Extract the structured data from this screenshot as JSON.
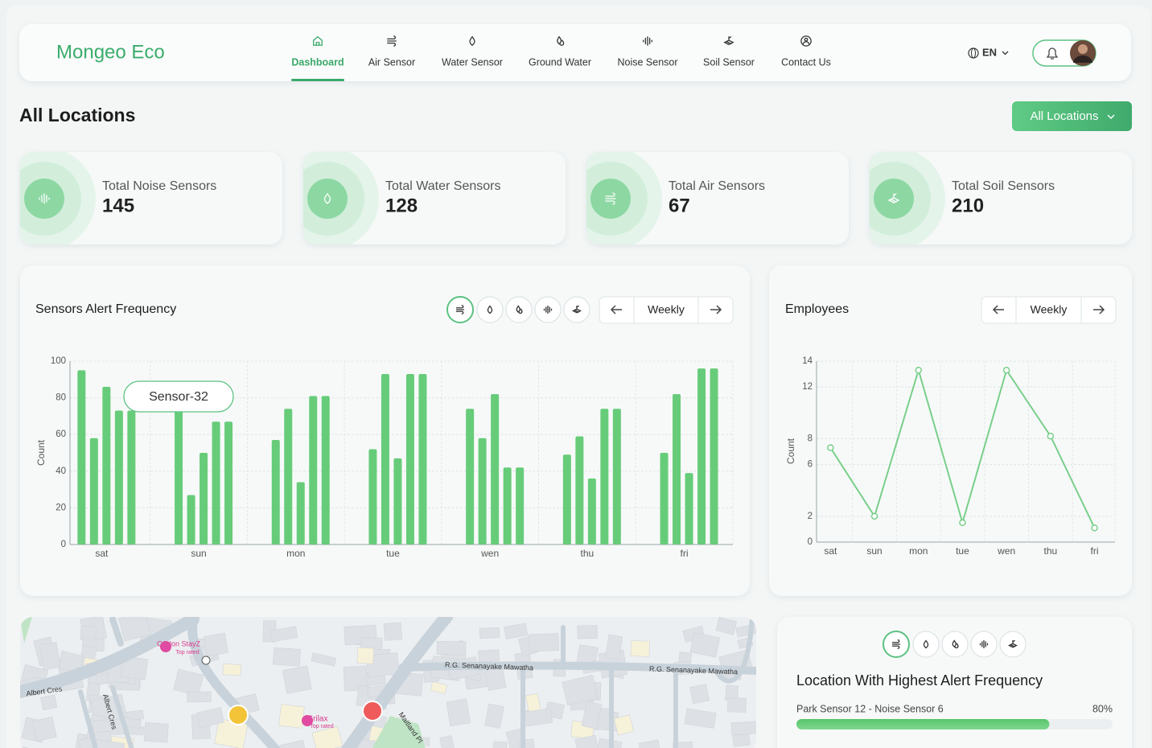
{
  "header": {
    "brand": "Mongeo Eco",
    "nav": [
      "Dashboard",
      "Air Sensor",
      "Water Sensor",
      "Ground Water",
      "Noise Sensor",
      "Soil Sensor",
      "Contact Us"
    ],
    "language": "EN"
  },
  "page_title": "All Locations",
  "location_filter": "All Locations",
  "stats": [
    {
      "label": "Total Noise Sensors",
      "value": 145
    },
    {
      "label": "Total Water Sensors",
      "value": 128
    },
    {
      "label": "Total Air Sensors",
      "value": 67
    },
    {
      "label": "Total Soil Sensors",
      "value": 210
    }
  ],
  "alert_chart": {
    "type": "bar",
    "title": "Sensors Alert Frequency",
    "period": "Weekly",
    "y_label": "Count",
    "categories": [
      "sat",
      "sun",
      "mon",
      "tue",
      "wen",
      "thu",
      "fri"
    ],
    "series": [
      {
        "values": [
          95,
          73,
          57,
          52,
          74,
          49,
          50
        ]
      },
      {
        "values": [
          58,
          27,
          74,
          93,
          58,
          59,
          82
        ]
      },
      {
        "values": [
          86,
          50,
          34,
          47,
          82,
          36,
          39
        ]
      },
      {
        "values": [
          73,
          67,
          81,
          93,
          42,
          74,
          96
        ]
      },
      {
        "values": [
          73,
          67,
          81,
          93,
          42,
          74,
          96
        ]
      }
    ],
    "color": "#67cc79",
    "ylim": [
      0,
      100
    ],
    "yticks": [
      0,
      20,
      40,
      60,
      80,
      100
    ],
    "grid": true,
    "tooltip": "Sensor-32"
  },
  "employees_chart": {
    "type": "line",
    "title": "Employees",
    "period": "Weekly",
    "y_label": "Count",
    "categories": [
      "sat",
      "sun",
      "mon",
      "tue",
      "wen",
      "thu",
      "fri"
    ],
    "values": [
      7.3,
      2,
      13.3,
      1.5,
      13.3,
      8.2,
      1.1
    ],
    "color": "#79cf8a",
    "ylim": [
      0,
      14
    ],
    "yticks": [
      0,
      2,
      6,
      8,
      12,
      14
    ],
    "grid": true
  },
  "map": {
    "labels": [
      "Ceylon StayZ",
      "Top rated",
      "R.G. Senanayake Mawatha",
      "R.G. Senanayake Mawatha",
      "Albert Cres",
      "Albert Cres",
      "Srilax",
      "Top rated",
      "Maitland Pl"
    ]
  },
  "alert_locations": {
    "title": "Location With Highest Alert Frequency",
    "items": [
      {
        "name": "Park Sensor 12 - Noise Sensor 6",
        "value": 80,
        "value_label": "80%"
      }
    ]
  }
}
